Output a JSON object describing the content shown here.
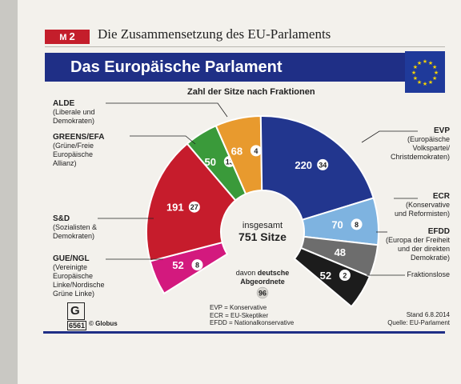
{
  "material": {
    "badge_letter": "M",
    "badge_number": "2",
    "title": "Die Zusammensetzung des EU-Parlaments"
  },
  "banner_title": "Das Europäische Parlament",
  "chart_data": {
    "type": "pie",
    "title": "Zahl der Sitze nach Fraktionen",
    "total_label": "insgesamt",
    "total_value": "751 Sitze",
    "total_seats": 751,
    "german_label_prefix": "davon",
    "german_label_bold": "deutsche",
    "german_label_line2": "Abgeordnete",
    "german_total": 96,
    "series": [
      {
        "name": "GUE/NGL",
        "desc": [
          "(Vereinigte",
          "Europäische",
          "Linke/Nordische",
          "Grüne Linke)"
        ],
        "seats": 52,
        "german": 8,
        "color": "#d3197e"
      },
      {
        "name": "S&D",
        "desc": [
          "(Sozialisten &",
          "Demokraten)"
        ],
        "seats": 191,
        "german": 27,
        "color": "#c61c2c"
      },
      {
        "name": "GREENS/EFA",
        "desc": [
          "(Grüne/Freie",
          "Europäische",
          "Allianz)"
        ],
        "seats": 50,
        "german": 13,
        "color": "#3a9a3a"
      },
      {
        "name": "ALDE",
        "desc": [
          "(Liberale und",
          "Demokraten)"
        ],
        "seats": 68,
        "german": 4,
        "color": "#e89a2e"
      },
      {
        "name": "EVP",
        "desc": [
          "(Europäische",
          "Volkspartei/",
          "Christdemokraten)"
        ],
        "seats": 220,
        "german": 34,
        "color": "#22368e"
      },
      {
        "name": "ECR",
        "desc": [
          "(Konservative",
          "und Reformisten)"
        ],
        "seats": 70,
        "german": 8,
        "color": "#7eb3e0"
      },
      {
        "name": "EFDD",
        "desc": [
          "(Europa der Freiheit",
          "und der direkten",
          "Demokratie)"
        ],
        "seats": 48,
        "german": null,
        "color": "#6d6d6d"
      },
      {
        "name": "Fraktionslose",
        "desc": [],
        "seats": 52,
        "german": 2,
        "color": "#1c1c1c"
      }
    ]
  },
  "legend": [
    "EVP = Konservative",
    "ECR = EU-Skeptiker",
    "EFDD = Nationalkonservative"
  ],
  "source": {
    "stand": "Stand 6.8.2014",
    "quelle": "Quelle: EU-Parlament"
  },
  "logo": {
    "number": "6561",
    "brand": "© Globus",
    "letter": "G"
  },
  "colors": {
    "banner": "#1f2f86",
    "badge": "#c41e2b"
  }
}
